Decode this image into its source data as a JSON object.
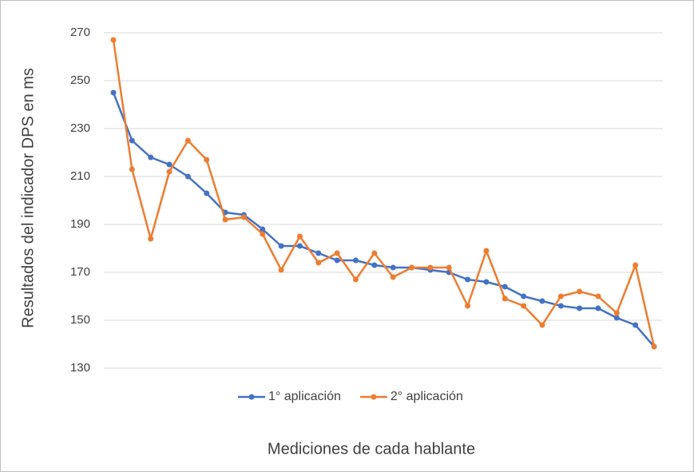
{
  "chart_data": {
    "type": "line",
    "x_label": "Mediciones de cada hablante",
    "y_label": "Resultados del indicador DPS en ms",
    "categories": [
      null,
      null,
      null,
      null,
      null,
      null,
      null,
      null,
      null,
      null,
      null,
      null,
      null,
      null,
      null,
      null,
      null,
      null,
      null,
      null,
      null,
      null,
      null,
      null,
      null,
      null,
      null,
      null,
      null,
      null
    ],
    "series": [
      {
        "name": "1° aplicación",
        "color": "#4472c4",
        "values": [
          245,
          225,
          218,
          215,
          210,
          203,
          195,
          194,
          188,
          181,
          181,
          178,
          175,
          175,
          173,
          172,
          172,
          171,
          170,
          167,
          166,
          164,
          160,
          158,
          156,
          155,
          155,
          151,
          148,
          139
        ]
      },
      {
        "name": "2° aplicación",
        "color": "#ed7d31",
        "values": [
          267,
          213,
          184,
          212,
          225,
          217,
          192,
          193,
          186,
          171,
          185,
          174,
          178,
          167,
          178,
          168,
          172,
          172,
          172,
          156,
          179,
          159,
          156,
          148,
          160,
          162,
          160,
          153,
          173,
          139
        ]
      }
    ],
    "ylim": [
      130,
      270
    ],
    "yticks": [
      130,
      150,
      170,
      190,
      210,
      230,
      250,
      270
    ],
    "grid": true,
    "legend": "bottom"
  }
}
